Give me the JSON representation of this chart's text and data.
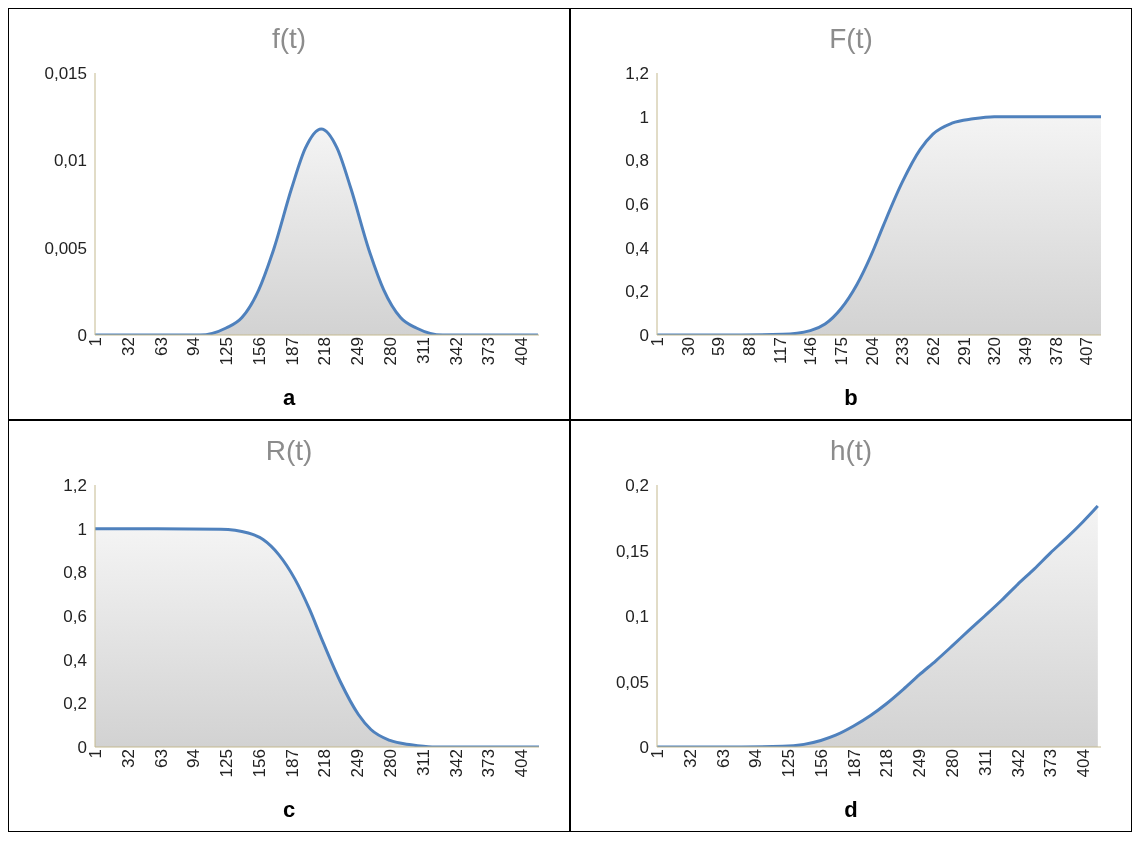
{
  "chart_data": [
    {
      "type": "area",
      "title": "f(t)",
      "annotations": [
        "a"
      ],
      "x": [
        1,
        60,
        100,
        125,
        140,
        156,
        170,
        187,
        200,
        215,
        230,
        243,
        260,
        274,
        290,
        305,
        330,
        380,
        420
      ],
      "xlim": [
        1,
        421
      ],
      "xticks": [
        1,
        32,
        63,
        94,
        125,
        156,
        187,
        218,
        249,
        280,
        311,
        342,
        373,
        404
      ],
      "ylim": [
        0,
        0.015
      ],
      "yticks": [
        {
          "value": 0,
          "label": "0"
        },
        {
          "value": 0.005,
          "label": "0,005"
        },
        {
          "value": 0.01,
          "label": "0,01"
        },
        {
          "value": 0.015,
          "label": "0,015"
        }
      ],
      "series": [
        {
          "color": "#4f81bd",
          "values": [
            0,
            0,
            0,
            0.0004,
            0.001,
            0.0026,
            0.0049,
            0.0084,
            0.0107,
            0.0118,
            0.0107,
            0.0084,
            0.0049,
            0.0026,
            0.001,
            0.0004,
            0,
            0,
            0
          ]
        }
      ]
    },
    {
      "type": "area",
      "title": "F(t)",
      "annotations": [
        "b"
      ],
      "x": [
        1,
        60,
        120,
        146,
        160,
        175,
        190,
        204,
        215,
        233,
        250,
        262,
        280,
        300,
        320,
        380,
        421
      ],
      "xlim": [
        1,
        421
      ],
      "xticks": [
        1,
        30,
        59,
        88,
        117,
        146,
        175,
        204,
        233,
        262,
        291,
        320,
        349,
        378,
        407
      ],
      "ylim": [
        0,
        1.2
      ],
      "yticks": [
        {
          "value": 0,
          "label": "0"
        },
        {
          "value": 0.2,
          "label": "0,2"
        },
        {
          "value": 0.4,
          "label": "0,4"
        },
        {
          "value": 0.6,
          "label": "0,6"
        },
        {
          "value": 0.8,
          "label": "0,8"
        },
        {
          "value": 1,
          "label": "1"
        },
        {
          "value": 1.2,
          "label": "1,2"
        }
      ],
      "series": [
        {
          "color": "#4f81bd",
          "values": [
            0,
            0,
            0.003,
            0.02,
            0.05,
            0.12,
            0.23,
            0.37,
            0.5,
            0.7,
            0.85,
            0.92,
            0.97,
            0.99,
            1,
            1,
            1
          ]
        }
      ]
    },
    {
      "type": "area",
      "title": "R(t)",
      "annotations": [
        "c"
      ],
      "x": [
        1,
        60,
        120,
        146,
        160,
        175,
        190,
        204,
        215,
        233,
        250,
        262,
        280,
        300,
        320,
        380,
        421
      ],
      "xlim": [
        1,
        421
      ],
      "xticks": [
        1,
        32,
        63,
        94,
        125,
        156,
        187,
        218,
        249,
        280,
        311,
        342,
        373,
        404
      ],
      "ylim": [
        0,
        1.2
      ],
      "yticks": [
        {
          "value": 0,
          "label": "0"
        },
        {
          "value": 0.2,
          "label": "0,2"
        },
        {
          "value": 0.4,
          "label": "0,4"
        },
        {
          "value": 0.6,
          "label": "0,6"
        },
        {
          "value": 0.8,
          "label": "0,8"
        },
        {
          "value": 1,
          "label": "1"
        },
        {
          "value": 1.2,
          "label": "1,2"
        }
      ],
      "series": [
        {
          "color": "#4f81bd",
          "values": [
            1,
            1,
            0.997,
            0.98,
            0.95,
            0.88,
            0.77,
            0.63,
            0.5,
            0.3,
            0.15,
            0.08,
            0.03,
            0.01,
            0,
            0,
            0
          ]
        }
      ]
    },
    {
      "type": "area",
      "title": "h(t)",
      "annotations": [
        "d"
      ],
      "x": [
        1,
        60,
        120,
        140,
        156,
        170,
        187,
        203,
        218,
        234,
        249,
        265,
        280,
        296,
        311,
        327,
        342,
        358,
        373,
        389,
        404,
        418
      ],
      "xlim": [
        1,
        421
      ],
      "xticks": [
        1,
        32,
        63,
        94,
        125,
        156,
        187,
        218,
        249,
        280,
        311,
        342,
        373,
        404
      ],
      "ylim": [
        0,
        0.2
      ],
      "yticks": [
        {
          "value": 0,
          "label": "0"
        },
        {
          "value": 0.05,
          "label": "0,05"
        },
        {
          "value": 0.1,
          "label": "0,1"
        },
        {
          "value": 0.15,
          "label": "0,15"
        },
        {
          "value": 0.2,
          "label": "0,2"
        }
      ],
      "series": [
        {
          "color": "#4f81bd",
          "values": [
            0,
            0,
            0.0005,
            0.002,
            0.005,
            0.009,
            0.016,
            0.024,
            0.033,
            0.044,
            0.055,
            0.066,
            0.077,
            0.089,
            0.1,
            0.112,
            0.124,
            0.136,
            0.148,
            0.16,
            0.172,
            0.184
          ]
        }
      ]
    }
  ]
}
